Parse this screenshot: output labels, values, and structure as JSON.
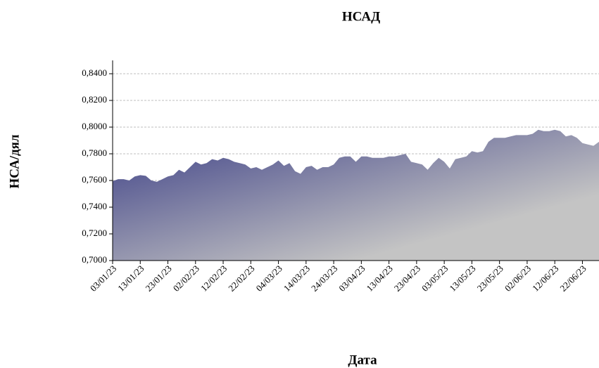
{
  "chart_data": {
    "type": "area",
    "title": "НСАД",
    "x_label": "Дата",
    "y_label": "НСА/дял",
    "categories": [
      "03/01/23",
      null,
      null,
      null,
      null,
      "13/01/23",
      null,
      null,
      null,
      null,
      "23/01/23",
      null,
      null,
      null,
      null,
      "02/02/23",
      null,
      null,
      null,
      null,
      "12/02/23",
      null,
      null,
      null,
      null,
      "22/02/23",
      null,
      null,
      null,
      null,
      "04/03/23",
      null,
      null,
      null,
      null,
      "14/03/23",
      null,
      null,
      null,
      null,
      "24/03/23",
      null,
      null,
      null,
      null,
      "03/04/23",
      null,
      null,
      null,
      null,
      "13/04/23",
      null,
      null,
      null,
      null,
      "23/04/23",
      null,
      null,
      null,
      null,
      "03/05/23",
      null,
      null,
      null,
      null,
      "13/05/23",
      null,
      null,
      null,
      null,
      "23/05/23",
      null,
      null,
      null,
      null,
      "02/06/23",
      null,
      null,
      null,
      null,
      "12/06/23",
      null,
      null,
      null,
      null,
      "22/06/23",
      null,
      null,
      null
    ],
    "values": [
      0.7595,
      0.761,
      0.761,
      0.76,
      0.763,
      0.764,
      0.7635,
      0.76,
      0.759,
      0.761,
      0.763,
      0.764,
      0.768,
      0.766,
      0.77,
      0.774,
      0.772,
      0.773,
      0.776,
      0.775,
      0.777,
      0.776,
      0.774,
      0.773,
      0.772,
      0.769,
      0.77,
      0.768,
      0.77,
      0.772,
      0.775,
      0.771,
      0.773,
      0.767,
      0.765,
      0.77,
      0.771,
      0.768,
      0.77,
      0.77,
      0.772,
      0.777,
      0.778,
      0.778,
      0.774,
      0.778,
      0.778,
      0.777,
      0.777,
      0.777,
      0.778,
      0.778,
      0.779,
      0.78,
      0.774,
      0.773,
      0.772,
      0.768,
      0.773,
      0.777,
      0.774,
      0.769,
      0.776,
      0.777,
      0.778,
      0.782,
      0.781,
      0.782,
      0.789,
      0.792,
      0.792,
      0.792,
      0.793,
      0.794,
      0.794,
      0.794,
      0.795,
      0.798,
      0.797,
      0.797,
      0.798,
      0.797,
      0.793,
      0.794,
      0.792,
      0.788,
      0.787,
      0.786,
      0.789
    ],
    "colors": [
      "#3a3d85",
      "#c4c4c4"
    ],
    "ylim": [
      0.7,
      0.85
    ],
    "yticks": [
      {
        "value": 0.7,
        "label": "0,7000"
      },
      {
        "value": 0.72,
        "label": "0,7200"
      },
      {
        "value": 0.74,
        "label": "0,7400"
      },
      {
        "value": 0.76,
        "label": "0,7600"
      },
      {
        "value": 0.78,
        "label": "0,7800"
      },
      {
        "value": 0.8,
        "label": "0,8000"
      },
      {
        "value": 0.82,
        "label": "0,8200"
      },
      {
        "value": 0.84,
        "label": "0,8400"
      }
    ],
    "grid": true
  }
}
